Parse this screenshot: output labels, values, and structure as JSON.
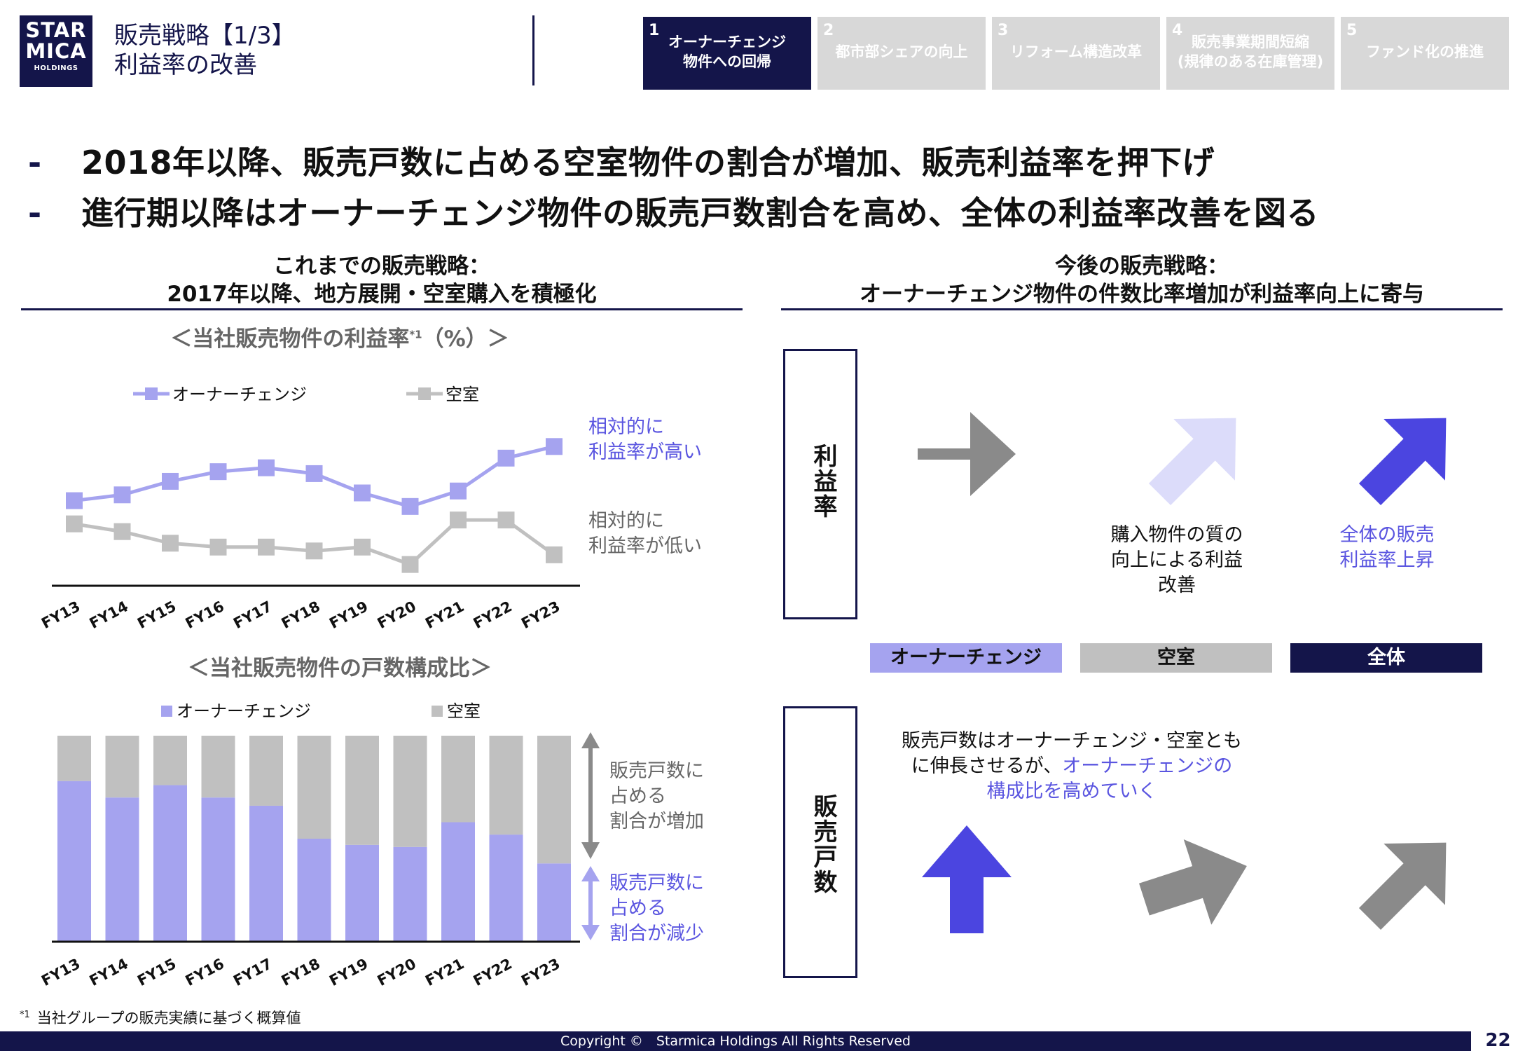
{
  "header": {
    "logo_line1": "STAR",
    "logo_line2": "MICA",
    "logo_line3": "HOLDINGS",
    "title_line1": "販売戦略【1/3】",
    "title_line2": "利益率の改善"
  },
  "tabs": [
    {
      "num": "1",
      "line1": "オーナーチェンジ",
      "line2": "物件への回帰",
      "active": true
    },
    {
      "num": "2",
      "line1": "都市部シェアの向上",
      "line2": "",
      "active": false
    },
    {
      "num": "3",
      "line1": "リフォーム構造改革",
      "line2": "",
      "active": false
    },
    {
      "num": "4",
      "line1": "販売事業期間短縮",
      "line2": "(規律のある在庫管理)",
      "active": false
    },
    {
      "num": "5",
      "line1": "ファンド化の推進",
      "line2": "",
      "active": false
    }
  ],
  "bullets": [
    {
      "dash": "-",
      "text": "2018年以降、販売戸数に占める空室物件の割合が増加、販売利益率を押下げ"
    },
    {
      "dash": "-",
      "text": "進行期以降はオーナーチェンジ物件の販売戸数割合を高め、全体の利益率改善を図る"
    }
  ],
  "left_section": {
    "heading_line1": "これまでの販売戦略：",
    "heading_line2": "2017年以降、地方展開・空室購入を積極化"
  },
  "right_section": {
    "heading_line1": "今後の販売戦略：",
    "heading_line2": "オーナーチェンジ物件の件数比率増加が利益率向上に寄与"
  },
  "chart_titles": {
    "line_pre": "＜当社販売物件の利益率",
    "line_sup": "*1",
    "line_post": "（%）＞",
    "bar": "＜当社販売物件の戸数構成比＞"
  },
  "line_annotations": {
    "high_line1": "相対的に",
    "high_line2": "利益率が高い",
    "low_line1": "相対的に",
    "low_line2": "利益率が低い"
  },
  "bar_annotations": {
    "up_line1": "販売戸数に",
    "up_line2": "占める",
    "up_line3": "割合が増加",
    "down_line1": "販売戸数に",
    "down_line2": "占める",
    "down_line3": "割合が減少"
  },
  "chart_data": [
    {
      "type": "line",
      "categories": [
        "FY13",
        "FY14",
        "FY15",
        "FY16",
        "FY17",
        "FY18",
        "FY19",
        "FY20",
        "FY21",
        "FY22",
        "FY23"
      ],
      "series": [
        {
          "name": "オーナーチェンジ",
          "values": [
            22,
            23.5,
            27,
            29.5,
            30.5,
            29,
            24,
            20.5,
            24.5,
            33,
            36
          ]
        },
        {
          "name": "空室",
          "values": [
            16,
            14,
            11,
            10,
            10,
            9,
            10,
            5.5,
            17,
            17,
            8
          ]
        }
      ],
      "ylim": [
        0,
        50
      ],
      "legend": "top",
      "grid": false,
      "colors": [
        "#a5a3ef",
        "#c0c0c0"
      ]
    },
    {
      "type": "bar",
      "stacked": true,
      "categories": [
        "FY13",
        "FY14",
        "FY15",
        "FY16",
        "FY17",
        "FY18",
        "FY19",
        "FY20",
        "FY21",
        "FY22",
        "FY23"
      ],
      "series": [
        {
          "name": "オーナーチェンジ",
          "values": [
            78,
            70,
            76,
            70,
            66,
            50,
            47,
            46,
            58,
            52,
            38
          ]
        },
        {
          "name": "空室",
          "values": [
            22,
            30,
            24,
            30,
            34,
            50,
            53,
            54,
            42,
            48,
            62
          ]
        }
      ],
      "ylim": [
        0,
        100
      ],
      "legend": "top",
      "grid": false,
      "colors": [
        "#a5a3ef",
        "#c0c0c0"
      ]
    }
  ],
  "strategy": {
    "row1_label": "利益率",
    "row2_label": "販売戸数",
    "cat_oc": "オーナーチェンジ",
    "cat_vacant": "空室",
    "cat_total": "全体",
    "vacant_note_line1": "購入物件の質の",
    "vacant_note_line2": "向上による利益",
    "vacant_note_line3": "改善",
    "total_note_line1": "全体の販売",
    "total_note_line2": "利益率上昇",
    "units_note_line1": "販売戸数はオーナーチェンジ・空室とも",
    "units_note_line2a": "に伸長させるが、",
    "units_note_line2b": "オーナーチェンジの",
    "units_note_line3": "構成比を高めていく"
  },
  "colors": {
    "navy": "#14154a",
    "purple_light": "#a5a3ef",
    "purple_dark": "#4b45e0",
    "purple_pale": "#dcdcfa",
    "grey": "#c0c0c0",
    "arrow_grey": "#8a8a8a"
  },
  "footnote": {
    "mark": "*1",
    "text": "当社グループの販売実績に基づく概算値"
  },
  "footer": {
    "copyright": "Copyright ©　Starmica Holdings All Rights Reserved",
    "page": "22"
  }
}
